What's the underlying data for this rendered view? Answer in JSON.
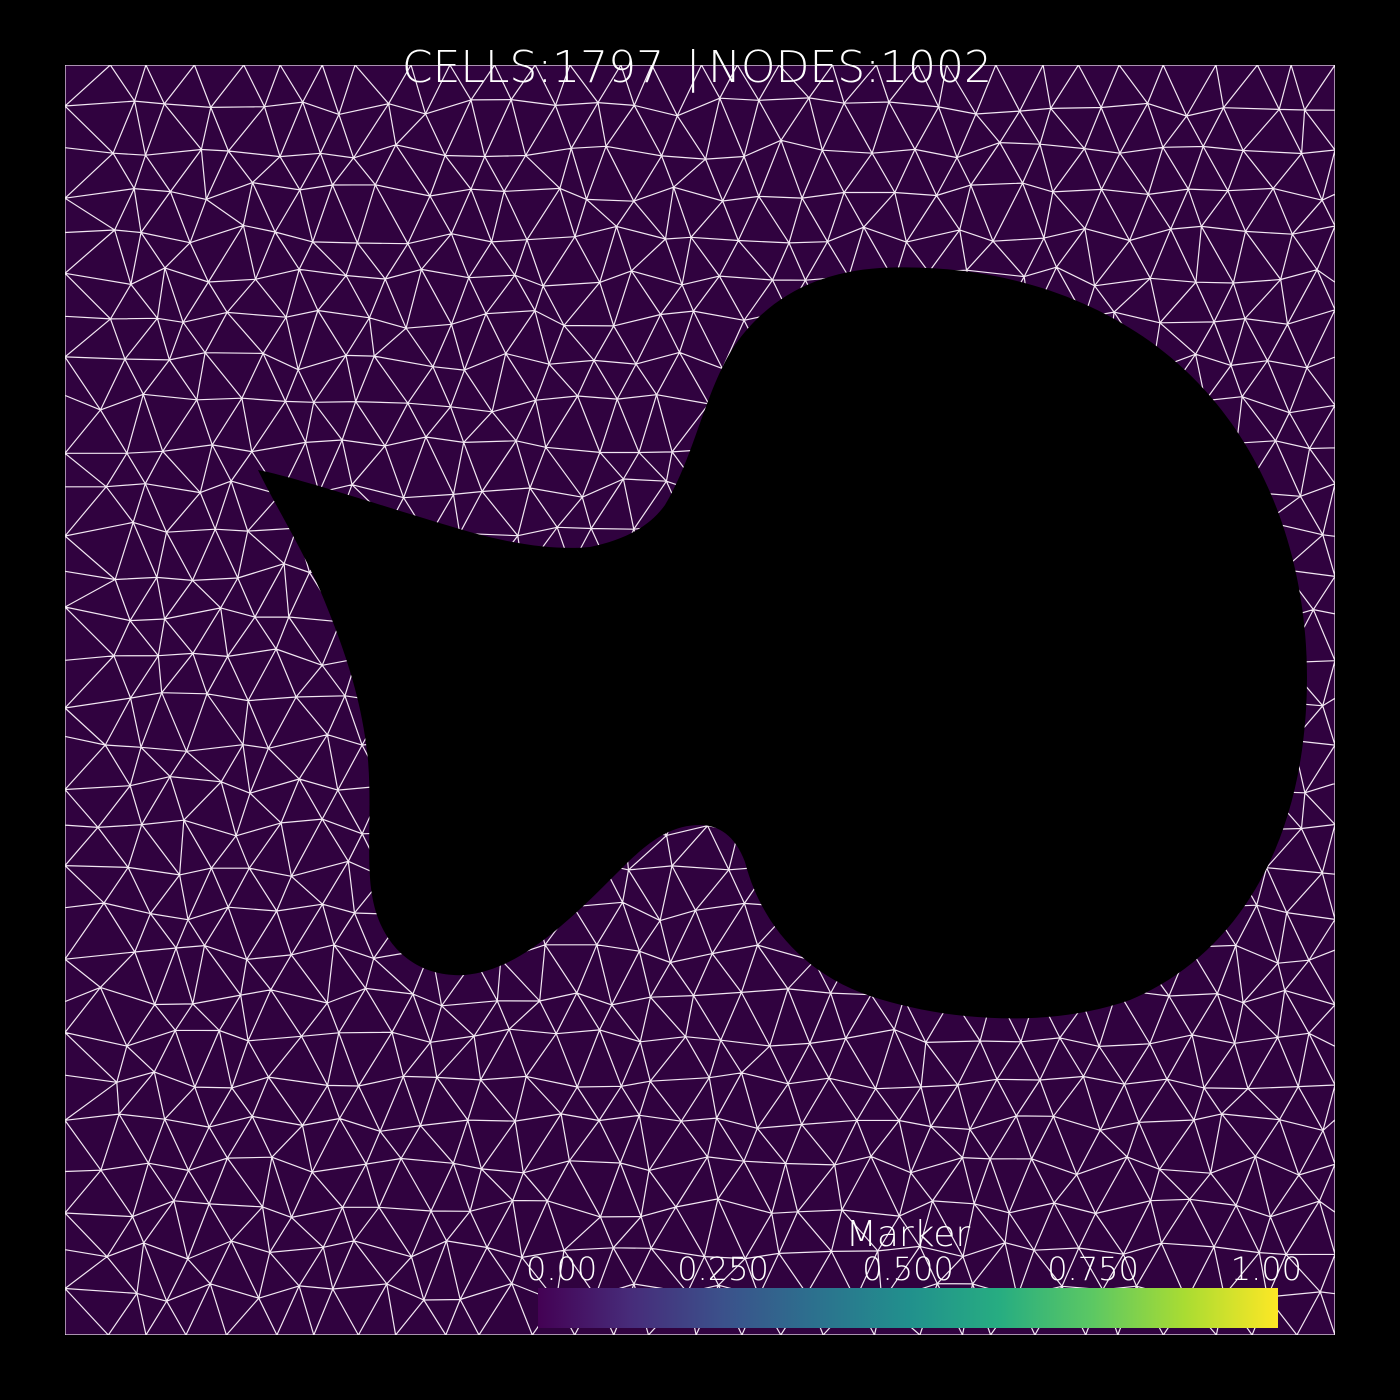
{
  "header": {
    "cells_label": "CELLS:1797",
    "separator": "|",
    "nodes_label": "NODES:1002"
  },
  "mesh": {
    "cells": 1797,
    "nodes": 1002,
    "background_color": "#000000",
    "cell_color": "#30023f",
    "edge_color": "#f3e8f3",
    "hole_color": "#000000"
  },
  "colorbar": {
    "title": "Marker",
    "ticks": [
      "0.00",
      "0.250",
      "0.500",
      "0.750",
      "1.00"
    ],
    "range": [
      0,
      1
    ],
    "colormap": "viridis",
    "gradient_stops": [
      "#440154",
      "#472c7a",
      "#3b518b",
      "#2c718e",
      "#21908d",
      "#27ad81",
      "#5cc863",
      "#aadc32",
      "#fde725"
    ]
  }
}
